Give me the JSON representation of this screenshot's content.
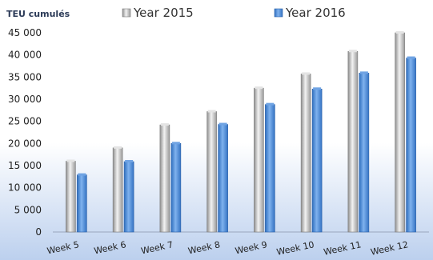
{
  "chart_data": {
    "type": "bar",
    "ylabel": "TEU cumulés",
    "xlabel": "",
    "categories": [
      "Week 5",
      "Week 6",
      "Week 7",
      "Week 8",
      "Week 9",
      "Week 10",
      "Week 11",
      "Week 12"
    ],
    "series": [
      {
        "name": "Year 2015",
        "values": [
          16000,
          19000,
          24200,
          27200,
          32500,
          35700,
          40800,
          45000
        ],
        "color": "#b5b5b5"
      },
      {
        "name": "Year 2016",
        "values": [
          12900,
          15900,
          20000,
          24300,
          28800,
          32300,
          35900,
          39300
        ],
        "color": "#4a86d4"
      }
    ],
    "ylim": [
      0,
      45000
    ],
    "yticks": [
      0,
      5000,
      10000,
      15000,
      20000,
      25000,
      30000,
      35000,
      40000,
      45000
    ],
    "ytick_labels": [
      "0",
      "5 000",
      "10 000",
      "15 000",
      "20 000",
      "25 000",
      "30 000",
      "35 000",
      "40 000",
      "45 000"
    ],
    "legend_position": "top",
    "grid": false,
    "background": "gradient white to light blue"
  }
}
